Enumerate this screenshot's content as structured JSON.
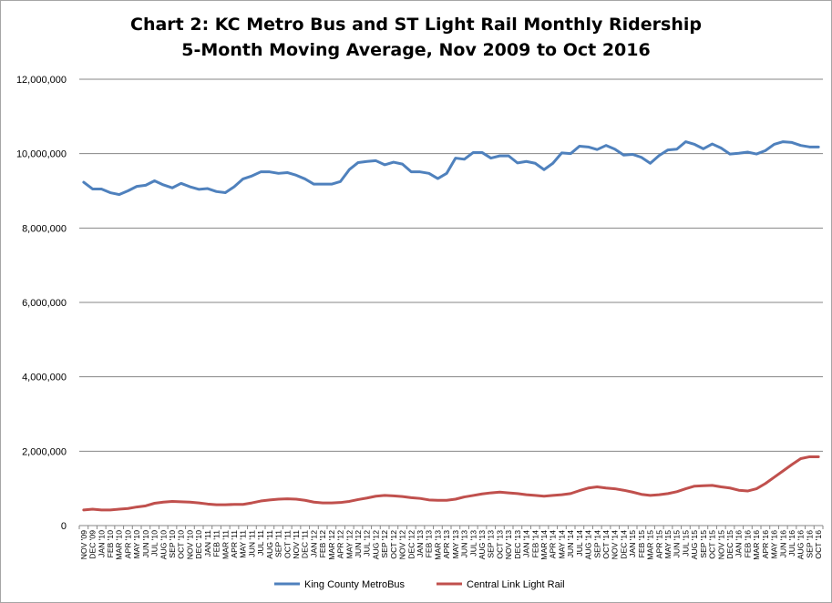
{
  "chart_data": {
    "type": "line",
    "title": "Chart 2: KC Metro Bus and ST Light Rail Monthly Ridership",
    "subtitle": "5-Month Moving Average, Nov 2009 to Oct 2016",
    "xlabel": "",
    "ylabel": "",
    "ylim": [
      0,
      12000000
    ],
    "yticks": [
      0,
      2000000,
      4000000,
      6000000,
      8000000,
      10000000,
      12000000
    ],
    "ytick_labels": [
      "0",
      "2,000,000",
      "4,000,000",
      "6,000,000",
      "8,000,000",
      "10,000,000",
      "12,000,000"
    ],
    "grid": "horizontal",
    "legend_position": "bottom",
    "categories": [
      "NOV '09",
      "DEC '09",
      "JAN '10",
      "FEB '10",
      "MAR '10",
      "APR '10",
      "MAY '10",
      "JUN '10",
      "JUL '10",
      "AUG '10",
      "SEP '10",
      "OCT '10",
      "NOV '10",
      "DEC '10",
      "JAN '11",
      "FEB '11",
      "MAR '11",
      "APR '11",
      "MAY '11",
      "JUN '11",
      "JUL '11",
      "AUG '11",
      "SEP '11",
      "OCT '11",
      "NOV '11",
      "DEC '11",
      "JAN '12",
      "FEB '12",
      "MAR '12",
      "APR '12",
      "MAY '12",
      "JUN '12",
      "JUL '12",
      "AUG '12",
      "SEP '12",
      "OCT '12",
      "NOV '12",
      "DEC '12",
      "JAN '13",
      "FEB '13",
      "MAR '13",
      "APR '13",
      "MAY '13",
      "JUN '13",
      "JUL '13",
      "AUG '13",
      "SEP '13",
      "OCT '13",
      "NOV '13",
      "DEC '13",
      "JAN '14",
      "FEB '14",
      "MAR '14",
      "APR '14",
      "MAY '14",
      "JUN '14",
      "JUL '14",
      "AUG '14",
      "SEP '14",
      "OCT '14",
      "NOV '14",
      "DEC '14",
      "JAN '15",
      "FEB '15",
      "MAR '15",
      "APR '15",
      "MAY '15",
      "JUN '15",
      "JUL '15",
      "AUG '15",
      "SEP '15",
      "OCT '15",
      "NOV '15",
      "DEC '15",
      "JAN '16",
      "FEB '16",
      "MAR '16",
      "APR '16",
      "MAY '16",
      "JUN '16",
      "JUL '16",
      "AUG '16",
      "SEP '16",
      "OCT '16"
    ],
    "series": [
      {
        "name": "King County MetroBus",
        "color": "#4f81bd",
        "values": [
          9230000,
          9050000,
          9050000,
          8950000,
          8900000,
          9000000,
          9120000,
          9150000,
          9270000,
          9160000,
          9080000,
          9200000,
          9110000,
          9040000,
          9060000,
          8980000,
          8950000,
          9110000,
          9320000,
          9400000,
          9510000,
          9510000,
          9470000,
          9490000,
          9420000,
          9320000,
          9180000,
          9180000,
          9180000,
          9250000,
          9570000,
          9760000,
          9790000,
          9810000,
          9700000,
          9770000,
          9720000,
          9510000,
          9510000,
          9470000,
          9330000,
          9470000,
          9880000,
          9850000,
          10030000,
          10030000,
          9880000,
          9940000,
          9940000,
          9750000,
          9790000,
          9740000,
          9570000,
          9740000,
          10020000,
          10000000,
          10200000,
          10180000,
          10110000,
          10220000,
          10120000,
          9960000,
          9980000,
          9900000,
          9740000,
          9950000,
          10100000,
          10120000,
          10320000,
          10250000,
          10130000,
          10260000,
          10150000,
          9990000,
          10010000,
          10040000,
          9990000,
          10080000,
          10250000,
          10320000,
          10300000,
          10220000,
          10180000,
          10180000
        ]
      },
      {
        "name": "Central Link Light Rail",
        "color": "#c0504d",
        "values": [
          420000,
          440000,
          420000,
          420000,
          440000,
          460000,
          500000,
          530000,
          600000,
          630000,
          650000,
          640000,
          630000,
          610000,
          580000,
          560000,
          560000,
          570000,
          570000,
          610000,
          660000,
          690000,
          710000,
          720000,
          710000,
          680000,
          630000,
          610000,
          610000,
          620000,
          650000,
          700000,
          740000,
          790000,
          810000,
          800000,
          780000,
          750000,
          730000,
          690000,
          680000,
          680000,
          710000,
          770000,
          810000,
          850000,
          880000,
          900000,
          880000,
          860000,
          830000,
          810000,
          790000,
          810000,
          830000,
          860000,
          940000,
          1010000,
          1040000,
          1010000,
          990000,
          950000,
          900000,
          840000,
          810000,
          830000,
          860000,
          910000,
          990000,
          1060000,
          1070000,
          1080000,
          1040000,
          1010000,
          950000,
          930000,
          990000,
          1130000,
          1300000,
          1470000,
          1640000,
          1800000,
          1850000,
          1850000
        ]
      }
    ]
  }
}
